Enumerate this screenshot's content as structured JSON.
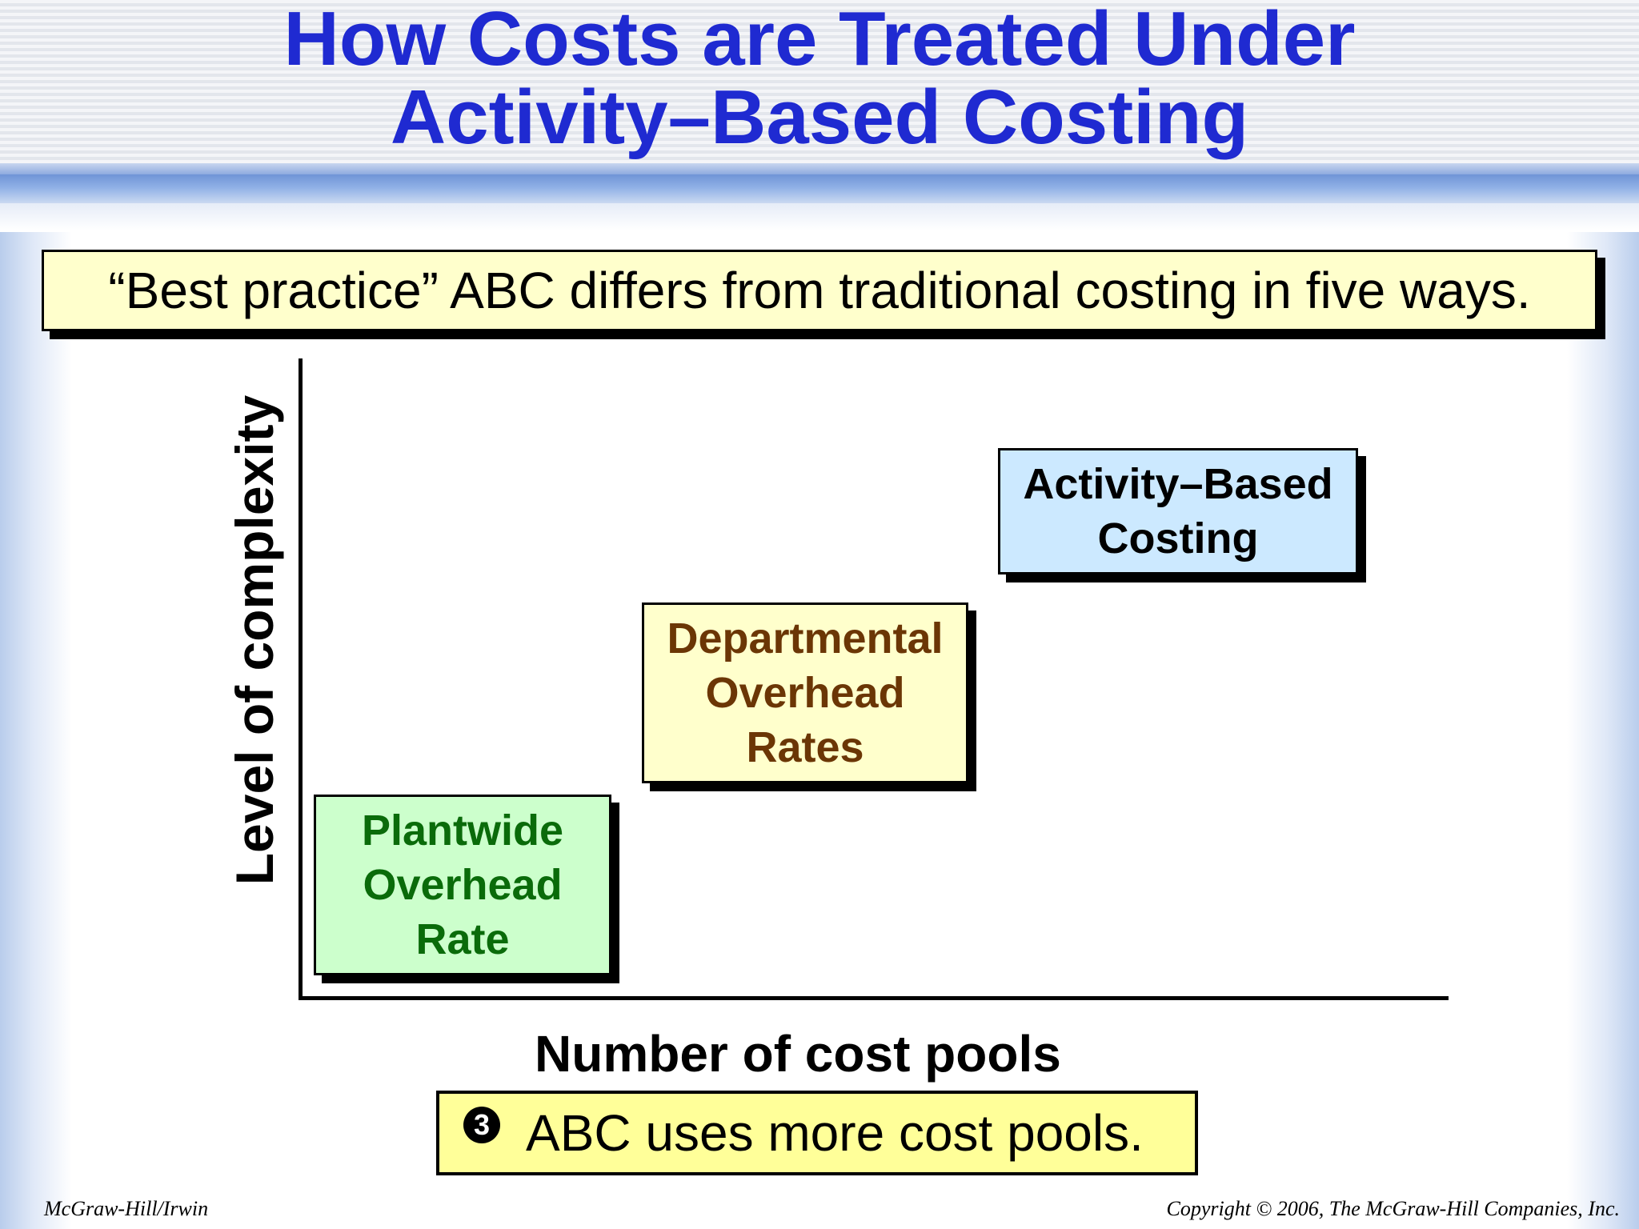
{
  "title": {
    "line1": "How Costs are Treated Under",
    "line2": "Activity–Based Costing"
  },
  "subtitle": "“Best practice” ABC differs from traditional costing in five ways.",
  "diagram": {
    "y_axis_label": "Level of complexity",
    "x_axis_label": "Number of cost pools",
    "boxes": [
      {
        "lines": [
          "Plantwide",
          "Overhead",
          "Rate"
        ],
        "color": "#0a6b0a",
        "fill": "#ccffcc"
      },
      {
        "lines": [
          "Departmental",
          "Overhead",
          "Rates"
        ],
        "color": "#6b3605",
        "fill": "#ffffcc"
      },
      {
        "lines": [
          "Activity–Based",
          "Costing"
        ],
        "color": "#000000",
        "fill": "#cce9ff"
      }
    ]
  },
  "note": {
    "number": "3",
    "text": "ABC uses more cost pools."
  },
  "footer": {
    "left": "McGraw-Hill/Irwin",
    "right": "Copyright © 2006, The McGraw-Hill Companies, Inc."
  },
  "colors": {
    "title": "#1f2ad1",
    "banner_blue": "#6f94d6"
  }
}
